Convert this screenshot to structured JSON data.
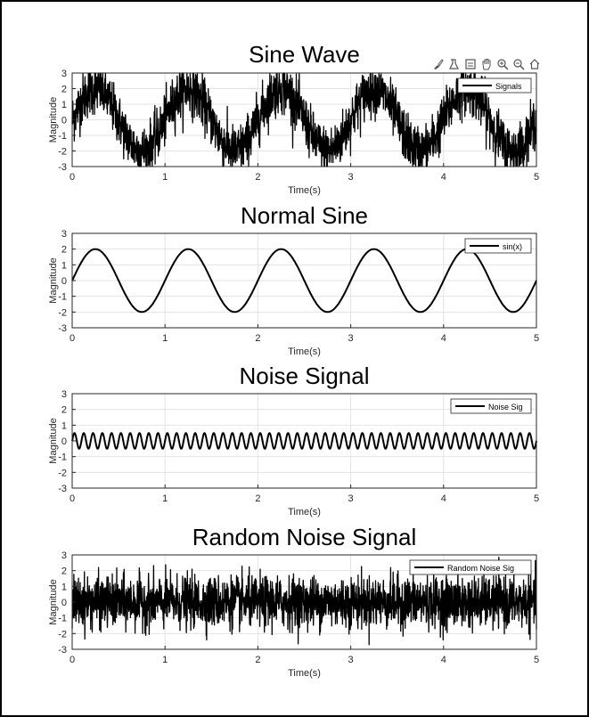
{
  "toolbar": {
    "icons": [
      "brush-icon",
      "data-tips-icon",
      "datatip-edit-icon",
      "pan-hand-icon",
      "zoom-in-icon",
      "zoom-out-icon",
      "home-icon"
    ]
  },
  "chart_data": [
    {
      "type": "line",
      "title": "Sine Wave",
      "xlabel": "Time(s)",
      "ylabel": "Magnitude",
      "xlim": [
        0,
        5
      ],
      "ylim": [
        -3,
        3
      ],
      "xticks": [
        0,
        1,
        2,
        3,
        4,
        5
      ],
      "yticks": [
        -3,
        -2,
        -1,
        0,
        1,
        2,
        3
      ],
      "grid": true,
      "legend": "top-right",
      "series": [
        {
          "name": "Signals",
          "color": "#000000",
          "description_formula": "2*sin(2*pi*t) + random noise",
          "amplitude": 2,
          "frequency_hz": 1,
          "noise_std": 0.8
        }
      ]
    },
    {
      "type": "line",
      "title": "Normal Sine",
      "xlabel": "Time(s)",
      "ylabel": "Magnitude",
      "xlim": [
        0,
        5
      ],
      "ylim": [
        -3,
        3
      ],
      "xticks": [
        0,
        1,
        2,
        3,
        4,
        5
      ],
      "yticks": [
        -3,
        -2,
        -1,
        0,
        1,
        2,
        3
      ],
      "grid": true,
      "legend": "top-right",
      "series": [
        {
          "name": "sin(x)",
          "color": "#000000",
          "amplitude": 2,
          "frequency_hz": 1
        }
      ]
    },
    {
      "type": "line",
      "title": "Noise Signal",
      "xlabel": "Time(s)",
      "ylabel": "Magnitude",
      "xlim": [
        0,
        5
      ],
      "ylim": [
        -3,
        3
      ],
      "xticks": [
        0,
        1,
        2,
        3,
        4,
        5
      ],
      "yticks": [
        -3,
        -2,
        -1,
        0,
        1,
        2,
        3
      ],
      "grid": true,
      "legend": "top-right",
      "series": [
        {
          "name": "Noise Sig",
          "color": "#000000",
          "amplitude": 0.5,
          "frequency_hz": 10
        }
      ]
    },
    {
      "type": "line",
      "title": "Random Noise Signal",
      "xlabel": "Time(s)",
      "ylabel": "Magnitude",
      "xlim": [
        0,
        5
      ],
      "ylim": [
        -3,
        3
      ],
      "xticks": [
        0,
        1,
        2,
        3,
        4,
        5
      ],
      "yticks": [
        -3,
        -2,
        -1,
        0,
        1,
        2,
        3
      ],
      "grid": true,
      "legend": "top-right",
      "series": [
        {
          "name": "Random Noise Sig",
          "color": "#000000",
          "noise_std": 0.8
        }
      ]
    }
  ]
}
